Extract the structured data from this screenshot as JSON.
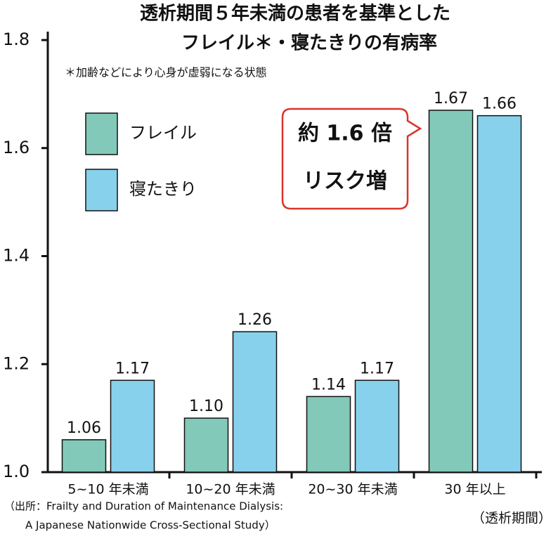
{
  "chart_data": {
    "type": "bar",
    "title": [
      "透析期間５年未満の患者を基準とした",
      "フレイル＊・寝たきりの有病率"
    ],
    "note": "＊加齢などにより心身が虚弱になる状態",
    "callout": [
      "約 1.6 倍",
      "リスク増"
    ],
    "x_label": "（透析期間）",
    "source": [
      "（出所：Frailty and Duration of Maintenance Dialysis:",
      "A Japanese Nationwide Cross-Sectional Study）"
    ],
    "categories": [
      "5~10 年未満",
      "10~20 年未満",
      "20~30 年未満",
      "30 年以上"
    ],
    "series": [
      {
        "name": "フレイル",
        "color": "#82c9b9",
        "values": [
          1.06,
          1.1,
          1.14,
          1.67
        ],
        "value_labels": [
          "1.06",
          "1.10",
          "1.14",
          "1.67"
        ]
      },
      {
        "name": "寝たきり",
        "color": "#88d1ec",
        "values": [
          1.17,
          1.26,
          1.17,
          1.66
        ],
        "value_labels": [
          "1.17",
          "1.26",
          "1.17",
          "1.66"
        ]
      }
    ],
    "ylim": [
      1,
      1.8
    ],
    "yticks": [
      {
        "value": 1,
        "label": "1.0"
      },
      1.2,
      1.4,
      1.6,
      1.8
    ],
    "legend": "upper left",
    "grid": false
  }
}
